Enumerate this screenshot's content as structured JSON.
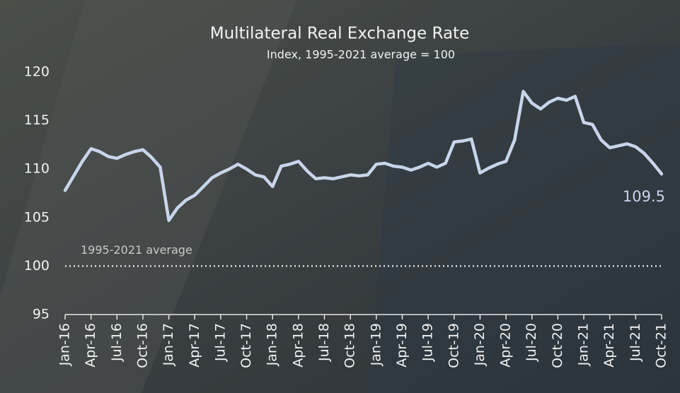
{
  "chart_data": {
    "type": "line",
    "title": "Multilateral Real Exchange Rate",
    "subtitle": "Index, 1995-2021 average = 100",
    "categories": [
      "Jan-16",
      null,
      null,
      "Apr-16",
      null,
      null,
      "Jul-16",
      null,
      null,
      "Oct-16",
      null,
      null,
      "Jan-17",
      null,
      null,
      "Apr-17",
      null,
      null,
      "Jul-17",
      null,
      null,
      "Oct-17",
      null,
      null,
      "Jan-18",
      null,
      null,
      "Apr-18",
      null,
      null,
      "Jul-18",
      null,
      null,
      "Oct-18",
      null,
      null,
      "Jan-19",
      null,
      null,
      "Apr-19",
      null,
      null,
      "Jul-19",
      null,
      null,
      "Oct-19",
      null,
      null,
      "Jan-20",
      null,
      null,
      "Apr-20",
      null,
      null,
      "Jul-20",
      null,
      null,
      "Oct-20",
      null,
      null,
      "Jan-21",
      null,
      null,
      "Apr-21",
      null,
      null,
      "Jul-21",
      null,
      null,
      "Oct-21"
    ],
    "series": [
      {
        "name": "Multilateral Real Exchange Rate",
        "color": "#c8d5ea",
        "values": [
          107.8,
          109.3,
          110.8,
          112.1,
          111.8,
          111.3,
          111.1,
          111.5,
          111.8,
          112.0,
          111.2,
          110.2,
          104.7,
          106.0,
          106.8,
          107.3,
          108.2,
          109.1,
          109.6,
          110.0,
          110.5,
          110.0,
          109.4,
          109.2,
          108.2,
          110.3,
          110.5,
          110.8,
          109.8,
          109.0,
          109.1,
          109.0,
          109.2,
          109.4,
          109.3,
          109.4,
          110.5,
          110.6,
          110.3,
          110.2,
          109.9,
          110.2,
          110.6,
          110.2,
          110.6,
          112.8,
          112.9,
          113.1,
          109.6,
          110.1,
          110.5,
          110.8,
          113.0,
          118.0,
          116.8,
          116.2,
          116.9,
          117.3,
          117.1,
          117.5,
          114.8,
          114.6,
          113.0,
          112.2,
          112.4,
          112.6,
          112.3,
          111.6,
          110.6,
          109.5
        ]
      }
    ],
    "reference_line": {
      "value": 100,
      "label": "1995-2021 average"
    },
    "ylim": [
      95,
      120
    ],
    "yticks": [
      95,
      100,
      105,
      110,
      115,
      120
    ],
    "grid": false
  }
}
